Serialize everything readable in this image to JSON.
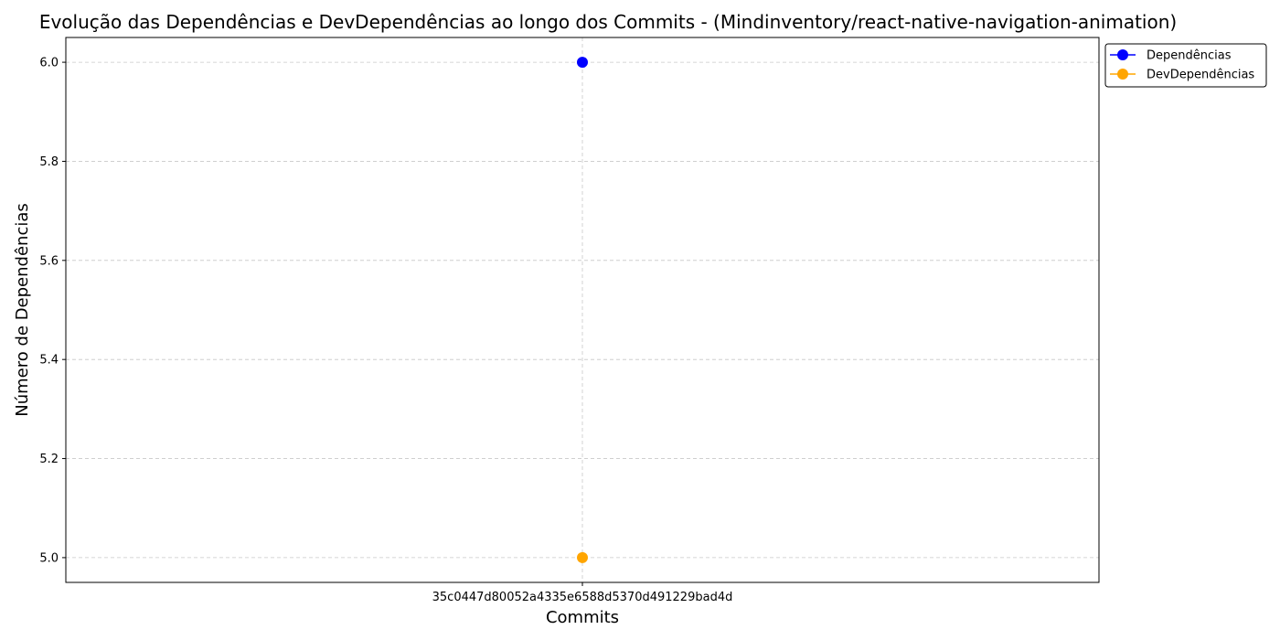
{
  "chart_data": {
    "type": "line",
    "title": "Evolução das Dependências e DevDependências ao longo dos Commits - (Mindinventory/react-native-navigation-animation)",
    "xlabel": "Commits",
    "ylabel": "Número de Dependências",
    "categories": [
      "35c0447d80052a4335e6588d5370d491229bad4d"
    ],
    "ylim": [
      4.95,
      6.05
    ],
    "yticks": [
      5.0,
      5.2,
      5.4,
      5.6,
      5.8,
      6.0
    ],
    "ytick_labels": [
      "5.0",
      "5.2",
      "5.4",
      "5.6",
      "5.8",
      "6.0"
    ],
    "grid": true,
    "legend_position": "upper-right-outside",
    "series": [
      {
        "name": "Dependências",
        "values": [
          6
        ],
        "color": "#0000ff",
        "marker": "circle"
      },
      {
        "name": "DevDependências",
        "values": [
          5
        ],
        "color": "#ffa500",
        "marker": "circle"
      }
    ]
  }
}
